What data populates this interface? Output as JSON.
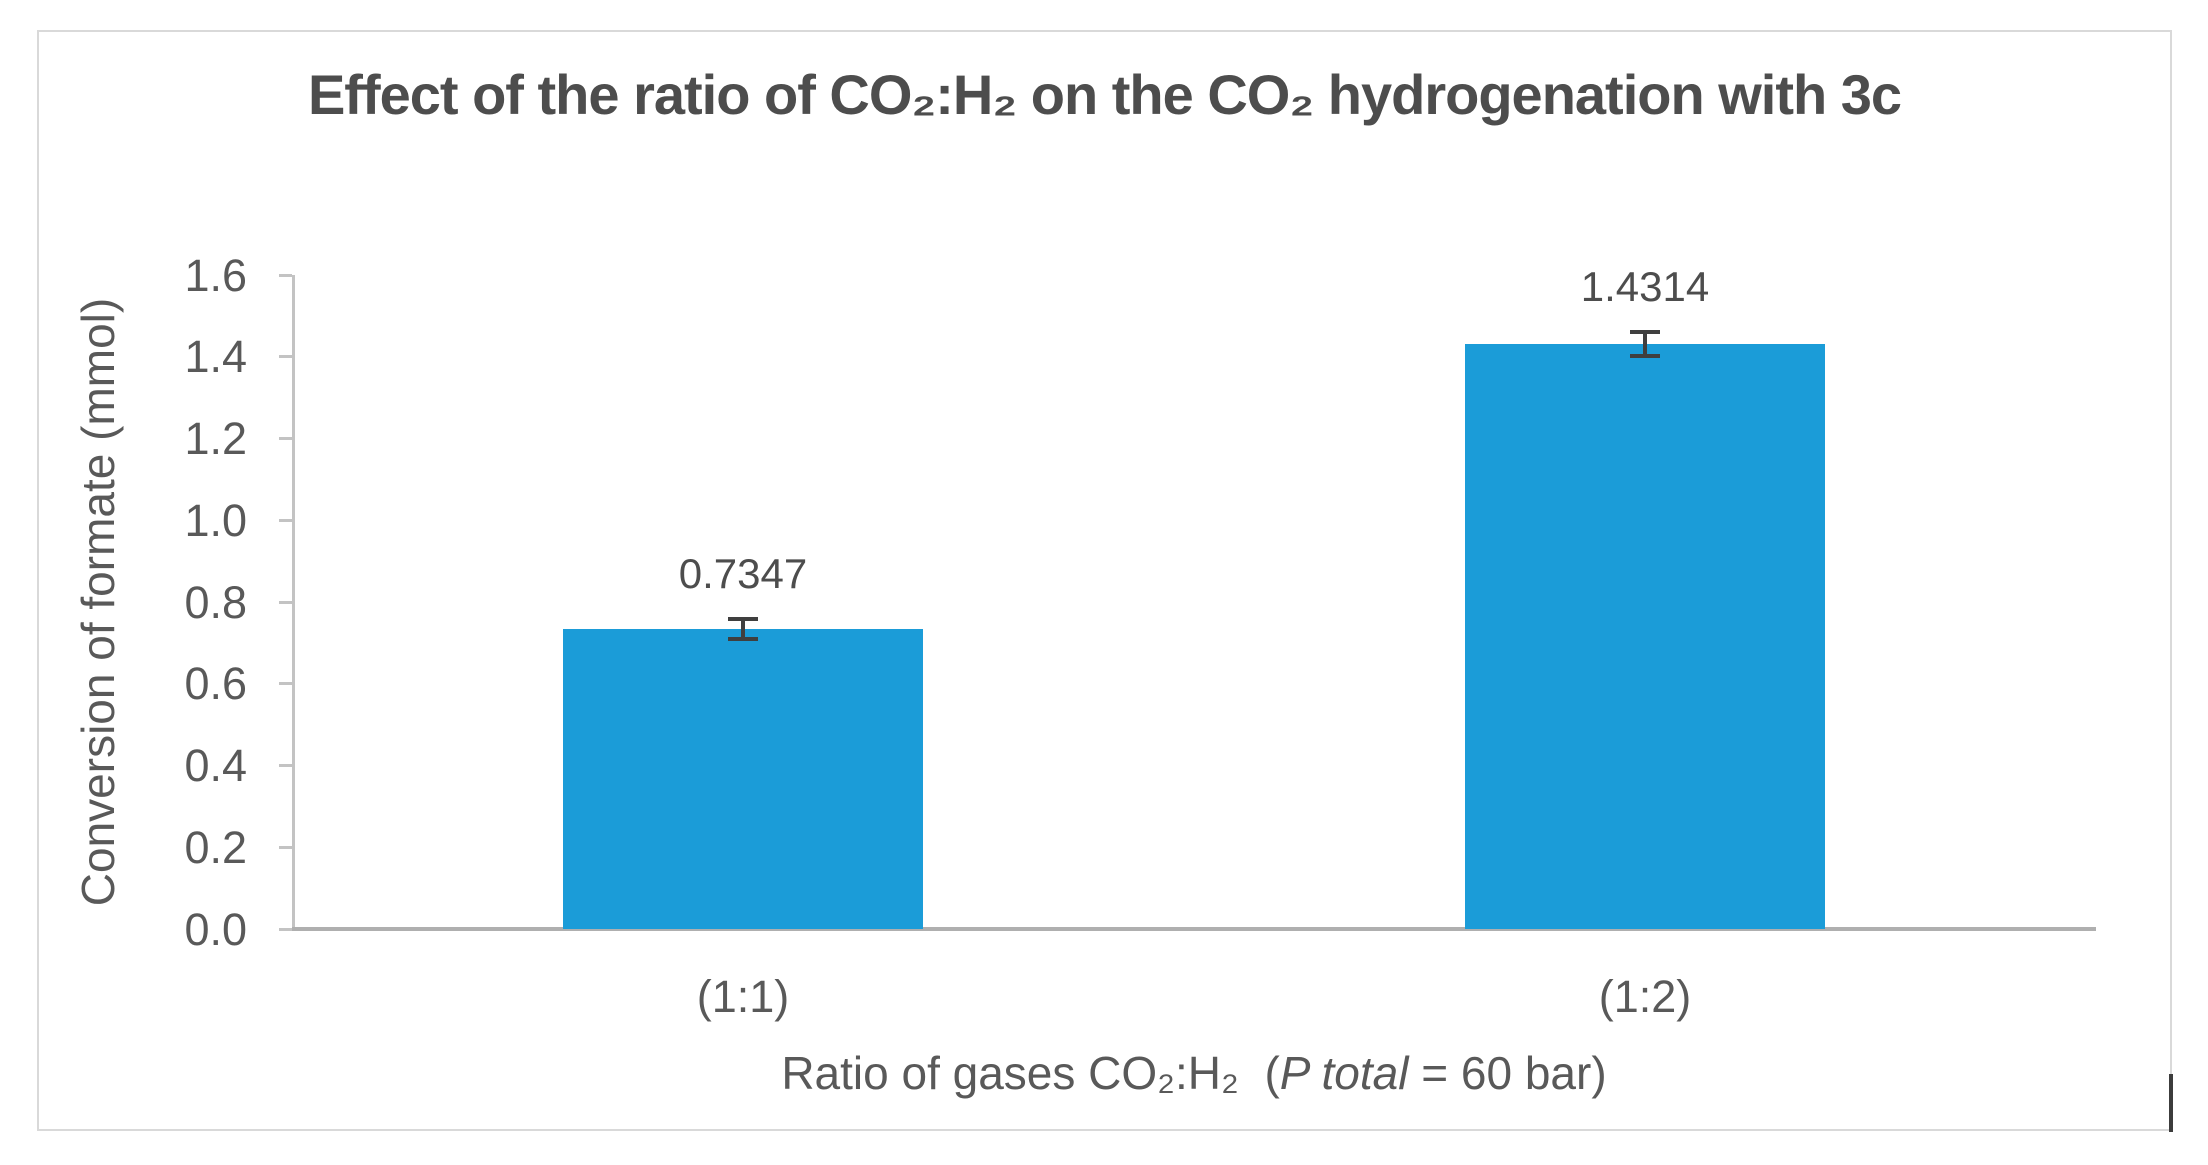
{
  "title": "Effect of the ratio of CO₂:H₂ on the CO₂ hydrogenation with 3c",
  "chart_data": {
    "type": "bar",
    "categories": [
      "(1:1)",
      "(1:2)"
    ],
    "values": [
      0.7347,
      1.4314
    ],
    "value_labels": [
      "0.7347",
      "1.4314"
    ],
    "errors": [
      0.024,
      0.03
    ],
    "title": "Effect of the ratio of CO₂:H₂ on the CO₂ hydrogenation with 3c",
    "ylabel": "Conversion of formate (mmol)",
    "xlabel_part1": "Ratio of gases CO₂:H₂  (",
    "xlabel_italic": "P total",
    "xlabel_part2": " = 60 bar)",
    "ylim": [
      0,
      1.6
    ],
    "ytick_step": 0.2,
    "yticks": [
      "0.0",
      "0.2",
      "0.4",
      "0.6",
      "0.8",
      "1.0",
      "1.2",
      "1.4",
      "1.6"
    ],
    "grid": false,
    "legend": false,
    "bar_color": "#1B9CD8",
    "error_bar_color": "#3F3F3F",
    "axis_color": "#C3C3C3",
    "text_color": "#595959"
  }
}
